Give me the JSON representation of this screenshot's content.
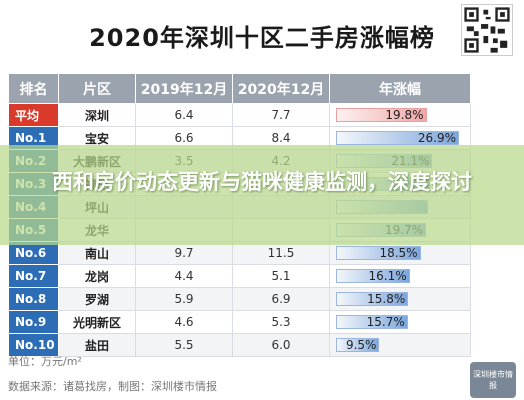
{
  "title": "2020年深圳十区二手房涨幅榜",
  "unit_label": "单位：万元/m²",
  "source_label": "数据来源：诸葛找房，制图：深圳楼市情报",
  "logo_text": "深圳楼市情报",
  "overlay_headline": "西和房价动态更新与猫咪健康监测，深度探讨",
  "colors": {
    "header": "#9aa3ae",
    "rank_blue": "#2d6db5",
    "rank_red": "#d93a2b",
    "bar_blue": "#7ca6dc",
    "bar_red": "#f0a6a6"
  },
  "chart_data": {
    "type": "table",
    "title": "2020年深圳十区二手房涨幅榜",
    "columns": [
      "排名",
      "片区",
      "2019年12月",
      "2020年12月",
      "年涨幅"
    ],
    "rows": [
      {
        "rank": "平均",
        "district": "深圳",
        "dec2019": "6.4",
        "dec2020": "7.7",
        "growth": "19.8%",
        "growth_value": 19.8
      },
      {
        "rank": "No.1",
        "district": "宝安",
        "dec2019": "6.6",
        "dec2020": "8.4",
        "growth": "26.9%",
        "growth_value": 26.9
      },
      {
        "rank": "No.2",
        "district": "大鹏新区",
        "dec2019": "3.5",
        "dec2020": "4.2",
        "growth": "21.1%",
        "growth_value": 21.1
      },
      {
        "rank": "No.3",
        "district": "福田",
        "dec2019": "",
        "dec2020": "",
        "growth": "",
        "growth_value": 20.5
      },
      {
        "rank": "No.4",
        "district": "坪山",
        "dec2019": "",
        "dec2020": "",
        "growth": "",
        "growth_value": 20.2
      },
      {
        "rank": "No.5",
        "district": "龙华",
        "dec2019": "",
        "dec2020": "",
        "growth": "19.7%",
        "growth_value": 19.7
      },
      {
        "rank": "No.6",
        "district": "南山",
        "dec2019": "9.7",
        "dec2020": "11.5",
        "growth": "18.5%",
        "growth_value": 18.5
      },
      {
        "rank": "No.7",
        "district": "龙岗",
        "dec2019": "4.4",
        "dec2020": "5.1",
        "growth": "16.1%",
        "growth_value": 16.1
      },
      {
        "rank": "No.8",
        "district": "罗湖",
        "dec2019": "5.9",
        "dec2020": "6.9",
        "growth": "15.8%",
        "growth_value": 15.8
      },
      {
        "rank": "No.9",
        "district": "光明新区",
        "dec2019": "4.6",
        "dec2020": "5.3",
        "growth": "15.7%",
        "growth_value": 15.7
      },
      {
        "rank": "No.10",
        "district": "盐田",
        "dec2019": "5.5",
        "dec2020": "6.0",
        "growth": "9.5%",
        "growth_value": 9.5
      }
    ],
    "growth_axis_max": 28
  }
}
